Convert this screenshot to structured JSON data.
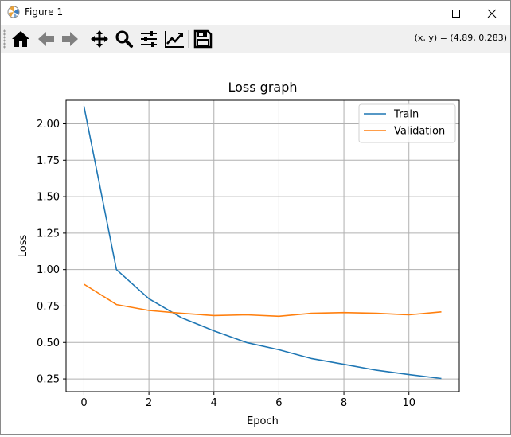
{
  "window": {
    "title": "Figure 1",
    "coords_readout": "(x, y) = (4.89, 0.283)"
  },
  "toolbar": {
    "buttons": [
      "home-icon",
      "back-arrow-icon",
      "forward-arrow-icon",
      "pan-move-icon",
      "zoom-magnifier-icon",
      "subplots-config-icon",
      "edit-axis-curve-icon",
      "save-floppy-icon"
    ]
  },
  "chart_data": {
    "type": "line",
    "title": "Loss graph",
    "xlabel": "Epoch",
    "ylabel": "Loss",
    "xlim": [
      -0.55,
      11.55
    ],
    "ylim": [
      0.163,
      2.161
    ],
    "xticks": [
      0,
      2,
      4,
      6,
      8,
      10
    ],
    "xtick_labels": [
      "0",
      "2",
      "4",
      "6",
      "8",
      "10"
    ],
    "yticks": [
      0.25,
      0.5,
      0.75,
      1.0,
      1.25,
      1.5,
      1.75,
      2.0
    ],
    "ytick_labels": [
      "0.25",
      "0.50",
      "0.75",
      "1.00",
      "1.25",
      "1.50",
      "1.75",
      "2.00"
    ],
    "grid": true,
    "legend_position": "upper right",
    "x": [
      0,
      1,
      2,
      3,
      4,
      5,
      6,
      7,
      8,
      9,
      10,
      11
    ],
    "series": [
      {
        "name": "Train",
        "color": "#1f77b4",
        "values": [
          2.12,
          1.0,
          0.8,
          0.67,
          0.58,
          0.5,
          0.45,
          0.39,
          0.35,
          0.31,
          0.28,
          0.253
        ]
      },
      {
        "name": "Validation",
        "color": "#ff7f0e",
        "values": [
          0.9,
          0.76,
          0.72,
          0.7,
          0.685,
          0.69,
          0.68,
          0.7,
          0.705,
          0.7,
          0.69,
          0.71
        ]
      }
    ]
  }
}
